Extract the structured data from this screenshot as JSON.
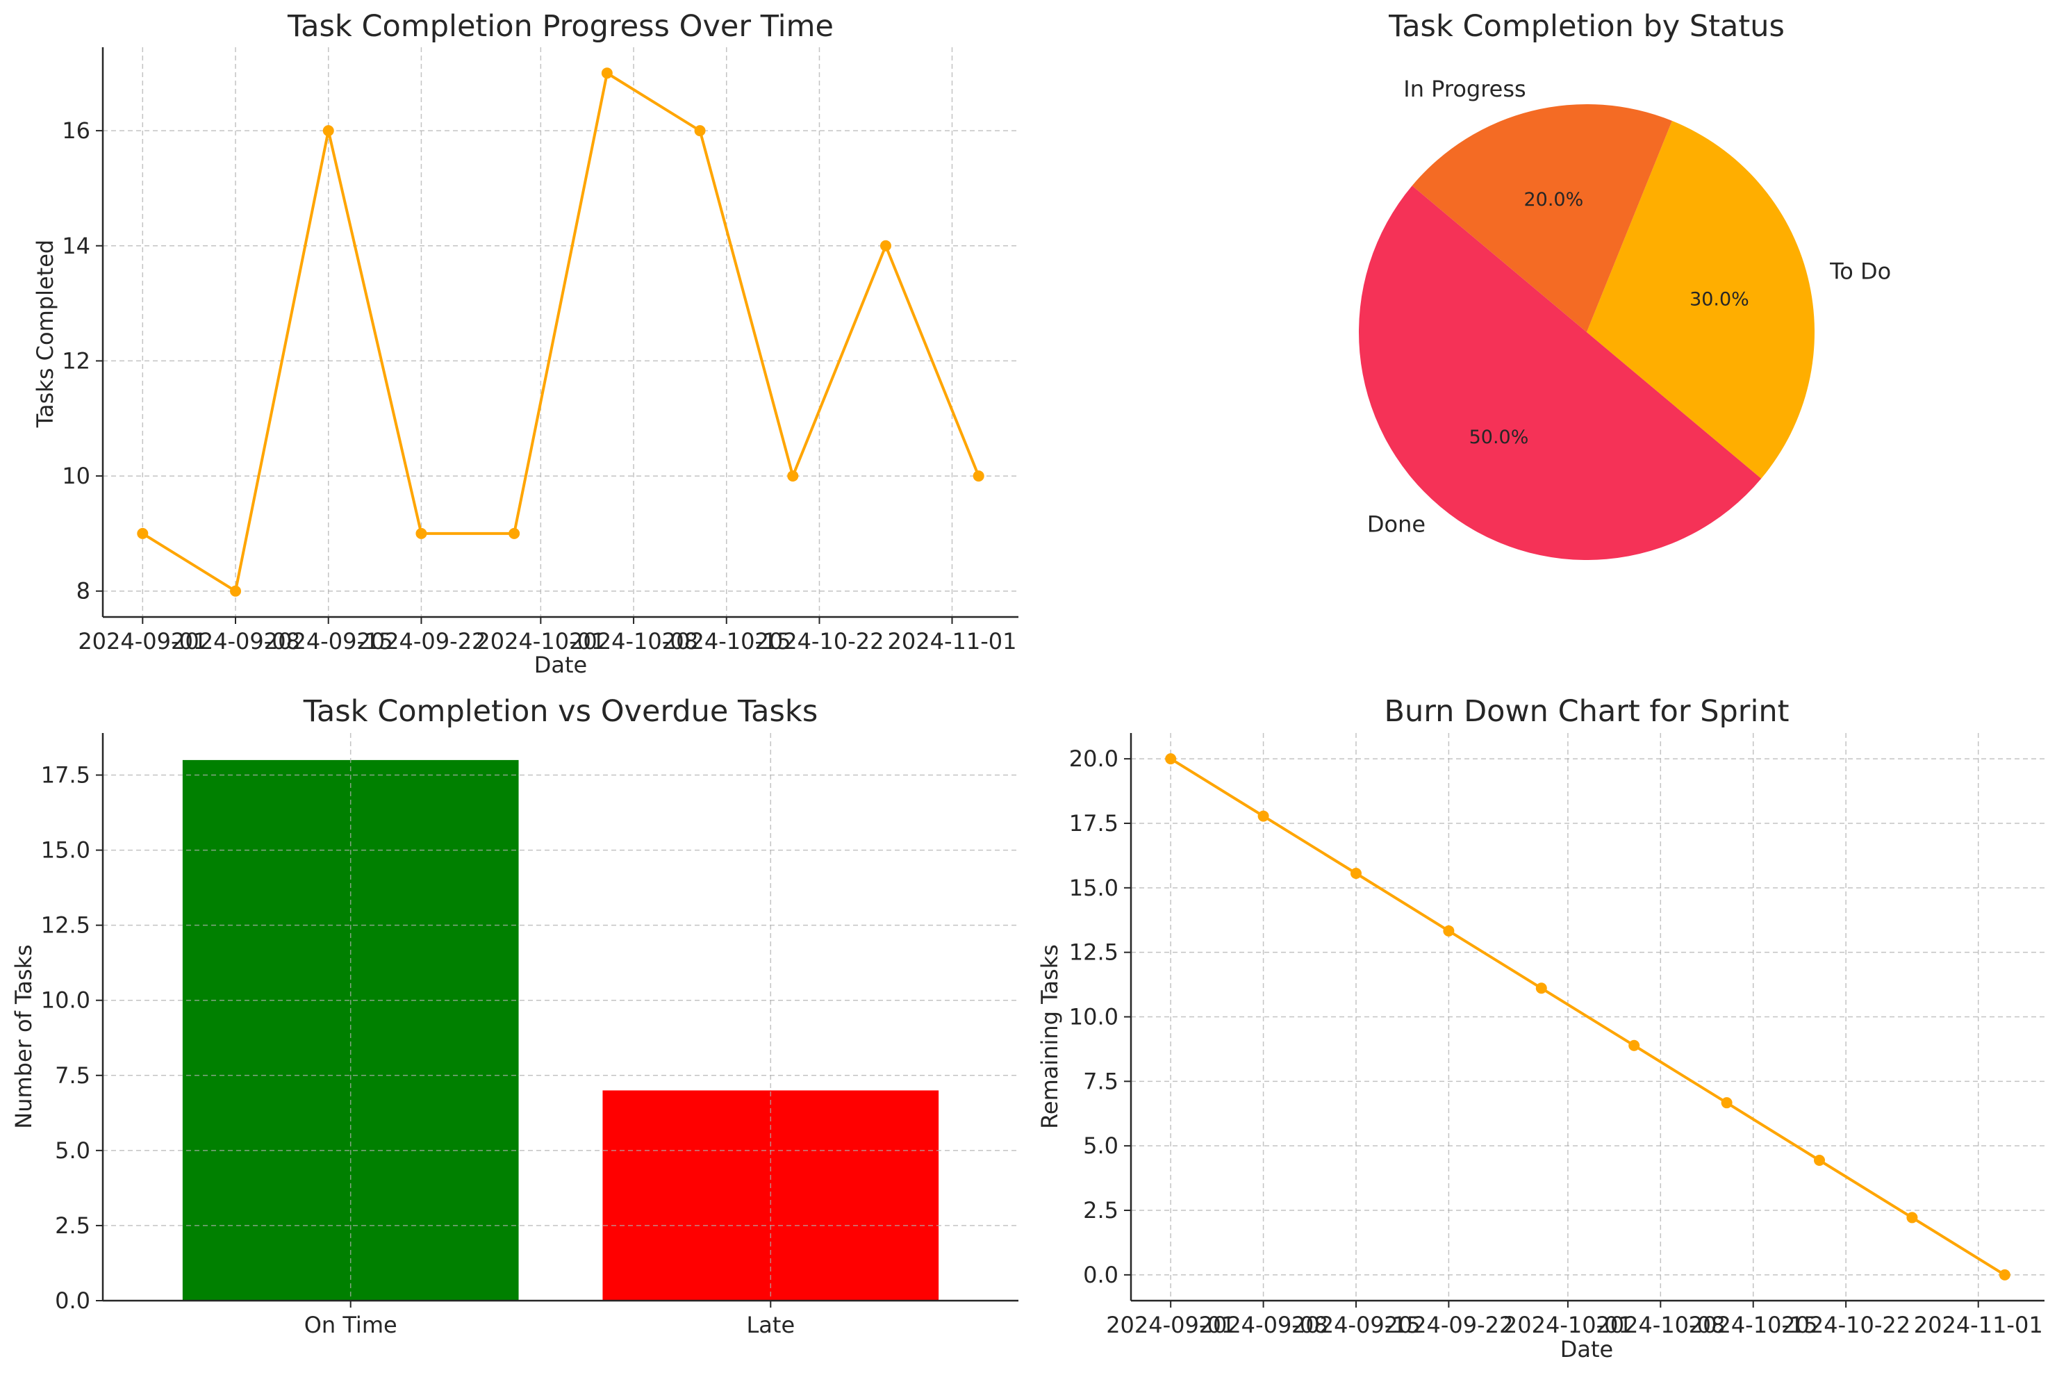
{
  "colors": {
    "line": "#FFA500",
    "on_time": "#008000",
    "late": "#FF0000",
    "done": "#F53257",
    "to_do": "#FFAE00",
    "in_progress": "#F46B24"
  },
  "chart_data": [
    {
      "id": "progress",
      "type": "line",
      "title": "Task Completion Progress Over Time",
      "xlabel": "Date",
      "ylabel": "Tasks Completed",
      "x": [
        "2024-09-01",
        "2024-09-08",
        "2024-09-15",
        "2024-09-22",
        "2024-09-29",
        "2024-10-06",
        "2024-10-13",
        "2024-10-20",
        "2024-10-27",
        "2024-11-03"
      ],
      "y": [
        9,
        8,
        16,
        9,
        9,
        17,
        16,
        10,
        14,
        10
      ],
      "xticks": [
        "2024-09-01",
        "2024-09-08",
        "2024-09-15",
        "2024-09-22",
        "2024-10-01",
        "2024-10-08",
        "2024-10-15",
        "2024-10-22",
        "2024-11-01"
      ],
      "xlim": [
        "2024-08-29",
        "2024-11-06"
      ],
      "yticks": [
        "8",
        "10",
        "12",
        "14",
        "16"
      ],
      "ylim": [
        7.55,
        17.45
      ],
      "grid": true,
      "marker": "circle"
    },
    {
      "id": "status",
      "type": "pie",
      "title": "Task Completion by Status",
      "labels": [
        "Done",
        "To Do",
        "In Progress"
      ],
      "values": [
        50,
        30,
        20
      ],
      "percent_labels": [
        "50.0%",
        "30.0%",
        "20.0%"
      ],
      "start_angle": 140
    },
    {
      "id": "overdue",
      "type": "bar",
      "title": "Task Completion vs Overdue Tasks",
      "xlabel": "",
      "ylabel": "Number of Tasks",
      "categories": [
        "On Time",
        "Late"
      ],
      "values": [
        18,
        7
      ],
      "yticks": [
        "0.0",
        "2.5",
        "5.0",
        "7.5",
        "10.0",
        "12.5",
        "15.0",
        "17.5"
      ],
      "ylim": [
        0,
        18.9
      ],
      "grid": true
    },
    {
      "id": "burndown",
      "type": "line",
      "title": "Burn Down Chart for Sprint",
      "xlabel": "Date",
      "ylabel": "Remaining Tasks",
      "x": [
        "2024-09-01",
        "2024-09-08",
        "2024-09-15",
        "2024-09-22",
        "2024-09-29",
        "2024-10-06",
        "2024-10-13",
        "2024-10-20",
        "2024-10-27",
        "2024-11-03"
      ],
      "y": [
        20.0,
        17.78,
        15.56,
        13.33,
        11.11,
        8.89,
        6.67,
        4.44,
        2.22,
        0.0
      ],
      "xticks": [
        "2024-09-01",
        "2024-09-08",
        "2024-09-15",
        "2024-09-22",
        "2024-10-01",
        "2024-10-08",
        "2024-10-15",
        "2024-10-22",
        "2024-11-01"
      ],
      "xlim": [
        "2024-08-29",
        "2024-11-06"
      ],
      "yticks": [
        "0.0",
        "2.5",
        "5.0",
        "7.5",
        "10.0",
        "12.5",
        "15.0",
        "17.5",
        "20.0"
      ],
      "ylim": [
        -1.0,
        21.0
      ],
      "grid": true,
      "marker": "circle"
    }
  ]
}
